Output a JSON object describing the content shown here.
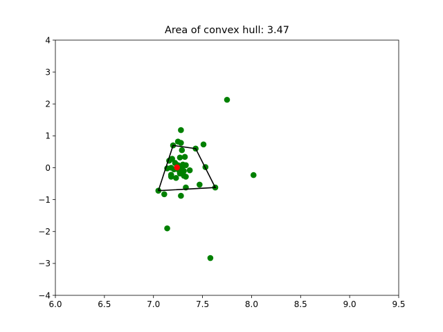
{
  "chart_data": {
    "type": "scatter",
    "title": "Area of convex hull: 3.47",
    "xlabel": "",
    "ylabel": "",
    "xlim": [
      6.0,
      9.5
    ],
    "ylim": [
      -4,
      4
    ],
    "x_ticks": [
      "6.0",
      "6.5",
      "7.0",
      "7.5",
      "8.0",
      "8.5",
      "9.0",
      "9.5"
    ],
    "y_ticks": [
      "4",
      "3",
      "2",
      "1",
      "0",
      "−1",
      "−2",
      "−3",
      "−4"
    ],
    "grid": false,
    "series": [
      {
        "marker_color": "#008000",
        "points": [
          [
            7.75,
            2.13
          ],
          [
            7.28,
            1.18
          ],
          [
            7.25,
            0.82
          ],
          [
            7.28,
            0.78
          ],
          [
            7.2,
            0.7
          ],
          [
            7.43,
            0.6
          ],
          [
            7.29,
            0.55
          ],
          [
            7.51,
            0.73
          ],
          [
            7.32,
            0.34
          ],
          [
            7.27,
            0.32
          ],
          [
            7.19,
            0.28
          ],
          [
            7.16,
            0.22
          ],
          [
            7.22,
            0.15
          ],
          [
            7.25,
            0.08
          ],
          [
            7.3,
            0.1
          ],
          [
            7.33,
            0.08
          ],
          [
            7.14,
            -0.02
          ],
          [
            7.18,
            0.0
          ],
          [
            7.21,
            -0.05
          ],
          [
            7.26,
            -0.08
          ],
          [
            7.29,
            -0.03
          ],
          [
            7.31,
            -0.1
          ],
          [
            7.37,
            -0.08
          ],
          [
            7.53,
            0.02
          ],
          [
            7.18,
            -0.22
          ],
          [
            7.18,
            -0.28
          ],
          [
            7.23,
            -0.32
          ],
          [
            7.27,
            -0.18
          ],
          [
            7.31,
            -0.25
          ],
          [
            7.33,
            -0.28
          ],
          [
            8.02,
            -0.23
          ],
          [
            7.47,
            -0.53
          ],
          [
            7.33,
            -0.62
          ],
          [
            7.63,
            -0.62
          ],
          [
            7.05,
            -0.72
          ],
          [
            7.11,
            -0.83
          ],
          [
            7.28,
            -0.88
          ],
          [
            7.14,
            -1.9
          ],
          [
            7.58,
            -2.83
          ]
        ]
      },
      {
        "name": "",
        "marker_color": "#ff0000",
        "points": [
          [
            7.24,
            0.01
          ]
        ]
      }
    ],
    "hull": {
      "line_color": "#000000",
      "points": [
        [
          7.05,
          -0.72
        ],
        [
          7.63,
          -0.62
        ],
        [
          7.43,
          0.6
        ],
        [
          7.2,
          0.7
        ],
        [
          7.05,
          -0.72
        ]
      ]
    }
  }
}
